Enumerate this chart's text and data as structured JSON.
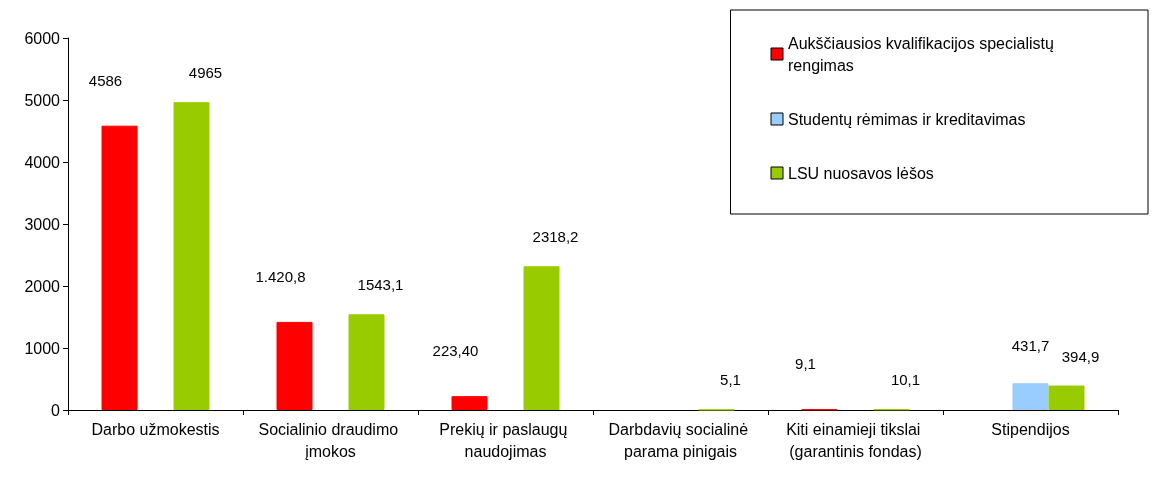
{
  "chart_data": {
    "type": "bar",
    "categories": [
      "Darbo užmokestis",
      "Socialinio draudimo įmokos",
      "Prekių ir paslaugų naudojimas",
      "Darbdavių socialinė parama pinigais",
      "Kiti einamieji tikslai (garantinis fondas)",
      "Stipendijos"
    ],
    "series": [
      {
        "name": "Aukščiausios kvalifikacijos specialistų rengimas",
        "color": "#ff0000",
        "values": [
          4586,
          1420.8,
          223.4,
          null,
          9.1,
          null
        ],
        "value_labels": [
          "4586",
          "1.420,8",
          "223,40",
          null,
          "9,1",
          null
        ]
      },
      {
        "name": "Studentų rėmimas ir kreditavimas",
        "color": "#99ccff",
        "values": [
          null,
          null,
          null,
          null,
          null,
          431.7
        ],
        "value_labels": [
          null,
          null,
          null,
          null,
          null,
          "431,7"
        ]
      },
      {
        "name": "LSU nuosavos lėšos",
        "color": "#99cc00",
        "values": [
          4965,
          1543.1,
          2318.2,
          5.1,
          10.1,
          394.9
        ],
        "value_labels": [
          "4965",
          "1543,1",
          "2318,2",
          "5,1",
          "10,1",
          "394,9"
        ]
      }
    ],
    "ylim": [
      0,
      6000
    ],
    "yticks": [
      0,
      1000,
      2000,
      3000,
      4000,
      5000,
      6000
    ],
    "grid": false,
    "legend": "top right"
  }
}
